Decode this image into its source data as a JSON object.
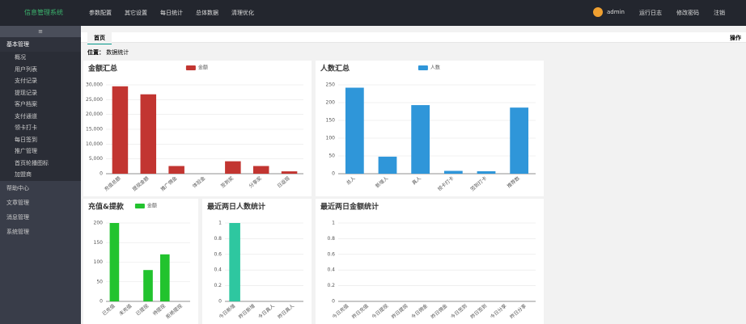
{
  "header": {
    "logo": "信息管理系统",
    "nav": [
      "参数配置",
      "其它设置",
      "每日统计",
      "总体数据",
      "清理优化"
    ],
    "user": "admin",
    "links": [
      "运行日志",
      "修改密码",
      "注销"
    ]
  },
  "sidebar": {
    "groups": [
      {
        "title": "基本管理",
        "items": [
          "概况",
          "用户列表",
          "支付记录",
          "提现记录",
          "客户档案",
          "支付通道",
          "领卡打卡",
          "每日签到",
          "推广管理",
          "首页轮播图标",
          "加盟商"
        ]
      },
      {
        "title": "帮助中心",
        "items": []
      },
      {
        "title": "文章管理",
        "items": []
      },
      {
        "title": "消息管理",
        "items": []
      },
      {
        "title": "系统管理",
        "items": []
      }
    ]
  },
  "tabs": {
    "home": "首页",
    "action": "操作"
  },
  "breadcrumb": {
    "label": "位置：",
    "current": "数据统计"
  },
  "chart_data": [
    {
      "type": "bar",
      "title": "金额汇总",
      "categories": [
        "充值总额",
        "提现金额",
        "推广佣金",
        "体验金",
        "签到奖",
        "分享奖",
        "日返现"
      ],
      "series": [
        {
          "name": "金额",
          "color": "#c23531",
          "values": [
            29500,
            26800,
            2600,
            0,
            4200,
            2600,
            800
          ]
        }
      ],
      "ylim": [
        0,
        30000
      ],
      "yticks": [
        0,
        {
          "value": 5000,
          "label": "5,000"
        },
        {
          "value": 10000,
          "label": "10,000"
        },
        {
          "value": 15000,
          "label": "15,000"
        },
        {
          "value": 20000,
          "label": "20,000"
        },
        {
          "value": 25000,
          "label": "25,000"
        },
        {
          "value": 30000,
          "label": "30,000"
        }
      ],
      "grid": true
    },
    {
      "type": "bar",
      "title": "人数汇总",
      "categories": [
        "总人",
        "新增人",
        "真人",
        "领卡打卡",
        "签到打卡",
        "推荐数"
      ],
      "series": [
        {
          "name": "人数",
          "color": "#2f96d9",
          "values": [
            242,
            48,
            193,
            8,
            7,
            186
          ]
        }
      ],
      "ylim": [
        0,
        250
      ],
      "yticks": [
        0,
        50,
        100,
        150,
        200,
        250
      ],
      "grid": true
    },
    {
      "type": "bar",
      "title": "充值&提款",
      "categories": [
        "已充值",
        "未充值",
        "已提现",
        "待提现",
        "拒绝提现"
      ],
      "series": [
        {
          "name": "金额",
          "color": "#22c32e",
          "values": [
            200,
            0,
            80,
            120,
            0
          ]
        }
      ],
      "ylim": [
        0,
        200
      ],
      "yticks": [
        0,
        50,
        100,
        150,
        200
      ],
      "grid": true
    },
    {
      "type": "bar",
      "title": "最近两日人数统计",
      "categories": [
        "今日新增",
        "昨日新增",
        "今日真人",
        "昨日真人"
      ],
      "color": "#2ec7a0",
      "values": [
        1,
        0,
        0,
        0
      ],
      "ylim": [
        0,
        1
      ],
      "yticks": [
        0,
        0.2,
        0.4,
        0.6,
        0.8,
        1
      ],
      "grid": true
    },
    {
      "type": "bar",
      "title": "最近两日金额统计",
      "categories": [
        "今日充值",
        "昨日充值",
        "今日提现",
        "昨日提现",
        "今日佣金",
        "昨日佣金",
        "今日签到",
        "昨日签到",
        "今日分享",
        "昨日分享"
      ],
      "color": "#2f96d9",
      "values": [
        0,
        0,
        0,
        0,
        0,
        0,
        0,
        0,
        0,
        0
      ],
      "ylim": [
        0,
        1
      ],
      "yticks": [
        0,
        0.2,
        0.4,
        0.6,
        0.8,
        1
      ],
      "grid": true
    }
  ]
}
